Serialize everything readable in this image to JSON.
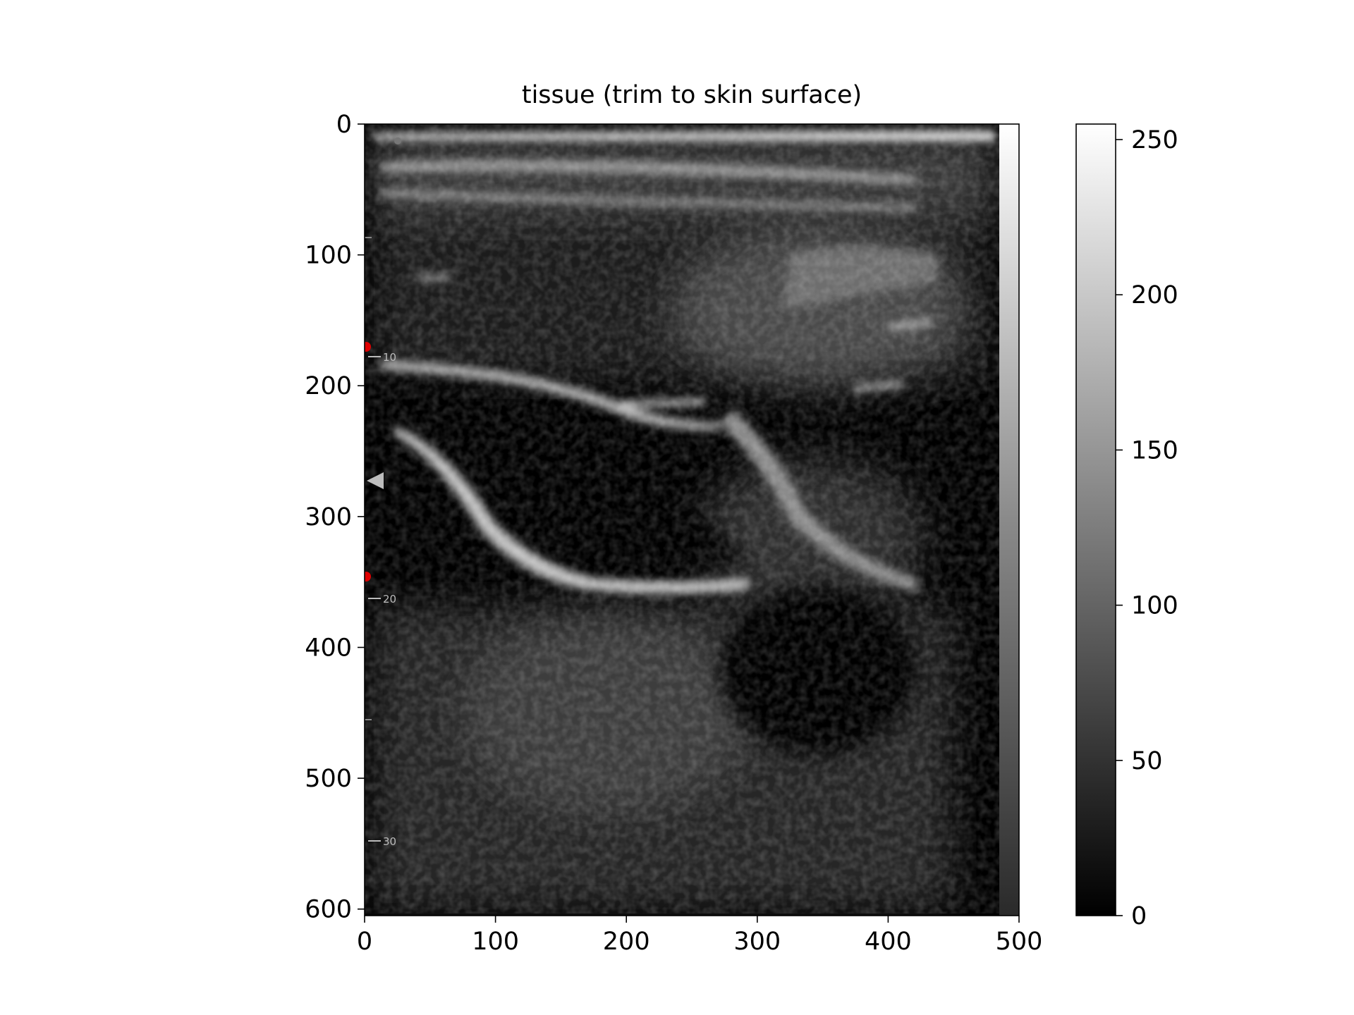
{
  "chart_data": {
    "type": "heatmap",
    "title": "tissue (trim to skin surface)",
    "xlabel": "",
    "ylabel": "",
    "xlim": [
      0,
      500
    ],
    "ylim": [
      0,
      605
    ],
    "y_inverted": true,
    "grid": false,
    "colormap": "gray",
    "x_ticks": [
      0,
      100,
      200,
      300,
      400,
      500
    ],
    "y_ticks": [
      0,
      100,
      200,
      300,
      400,
      500,
      600
    ],
    "colorbar": {
      "ticks": [
        0,
        50,
        100,
        150,
        200,
        250
      ],
      "range": [
        0,
        255
      ]
    },
    "overlay_scale_labels": [
      "10",
      "20",
      "30"
    ],
    "colors": {
      "background": "#000000",
      "bright": "#ffffff"
    }
  }
}
